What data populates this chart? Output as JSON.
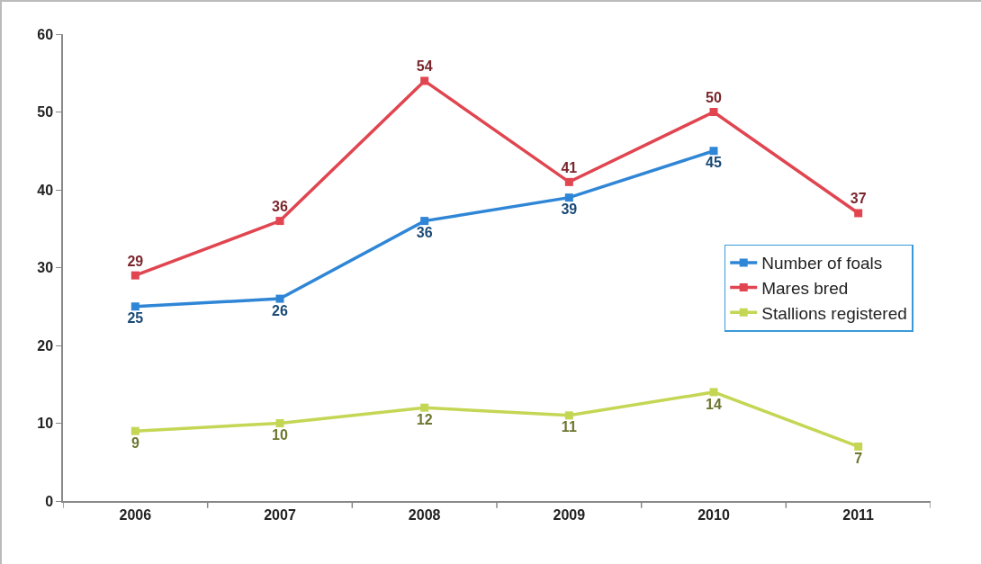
{
  "chart_data": {
    "type": "line",
    "categories": [
      "2006",
      "2007",
      "2008",
      "2009",
      "2010",
      "2011"
    ],
    "series": [
      {
        "name": "Number of foals",
        "color": "#2f86d6",
        "values": [
          25,
          26,
          36,
          39,
          45,
          null
        ]
      },
      {
        "name": "Mares bred",
        "color": "#e04550",
        "values": [
          29,
          36,
          54,
          41,
          50,
          37
        ]
      },
      {
        "name": "Stallions registered",
        "color": "#c5d655",
        "values": [
          9,
          10,
          12,
          11,
          14,
          7
        ]
      }
    ],
    "ylim": [
      0,
      60
    ],
    "yticks": [
      0,
      10,
      20,
      30,
      40,
      50,
      60
    ],
    "grid": false,
    "legend": "right",
    "marker": "square",
    "line_style": "solid",
    "data_labels": true
  }
}
